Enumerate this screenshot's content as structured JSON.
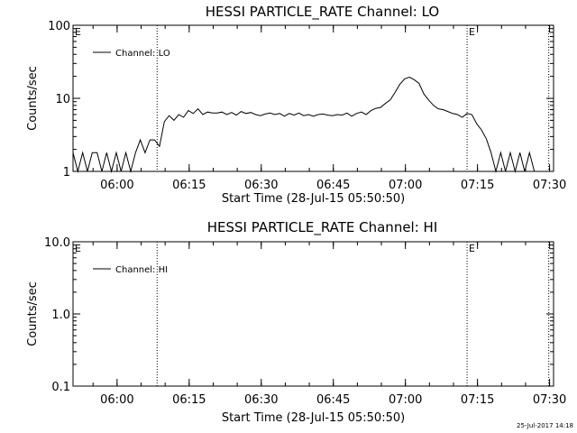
{
  "chart_data": [
    {
      "type": "line",
      "title": "HESSI PARTICLE_RATE Channel: LO",
      "xlabel": "Start Time (28-Jul-15 05:50:50)",
      "ylabel": "Counts/sec",
      "x_tick_labels": [
        "06:00",
        "06:15",
        "06:30",
        "06:45",
        "07:00",
        "07:15",
        "07:30"
      ],
      "x_ticks_min": [
        9.17,
        24.17,
        39.17,
        54.17,
        69.17,
        84.17,
        99.17
      ],
      "xlim_min": [
        0,
        100
      ],
      "y_scale": "log",
      "ylim": [
        1,
        100
      ],
      "y_tick_labels": [
        "1",
        "10",
        "100"
      ],
      "y_tick_values": [
        1,
        10,
        100
      ],
      "legend": "top-left",
      "series": [
        {
          "name": "Channel: LO",
          "x_min": [
            0,
            1,
            2,
            3,
            4,
            5,
            6,
            7,
            8,
            9,
            10,
            11,
            12,
            13,
            14,
            15,
            16,
            17,
            18,
            19,
            20,
            21,
            22,
            23,
            24,
            25,
            26,
            27,
            28,
            29,
            30,
            31,
            32,
            33,
            34,
            35,
            36,
            37,
            38,
            39,
            40,
            41,
            42,
            43,
            44,
            45,
            46,
            47,
            48,
            49,
            50,
            51,
            52,
            53,
            54,
            55,
            56,
            57,
            58,
            59,
            60,
            61,
            62,
            63,
            64,
            65,
            66,
            67,
            68,
            69,
            70,
            71,
            72,
            73,
            74,
            75,
            76,
            77,
            78,
            79,
            80,
            81,
            82,
            83,
            84,
            85,
            86,
            87,
            88,
            89,
            90,
            91,
            92,
            93,
            94,
            95,
            96
          ],
          "values": [
            1.8,
            1.0,
            1.8,
            1.0,
            1.8,
            1.8,
            1.0,
            1.8,
            1.0,
            1.8,
            1.0,
            1.8,
            1.0,
            1.8,
            2.7,
            1.8,
            2.7,
            2.7,
            2.2,
            4.8,
            5.8,
            5.0,
            6.0,
            5.5,
            6.8,
            6.2,
            7.2,
            6.0,
            6.5,
            6.3,
            6.3,
            6.5,
            6.0,
            6.4,
            5.9,
            6.6,
            6.2,
            6.4,
            6.0,
            5.8,
            6.1,
            6.3,
            6.0,
            6.2,
            5.7,
            6.2,
            5.9,
            6.3,
            5.8,
            6.0,
            5.7,
            6.0,
            6.1,
            5.9,
            5.8,
            6.0,
            5.9,
            6.3,
            5.7,
            6.2,
            6.5,
            6.0,
            6.8,
            7.3,
            7.5,
            8.5,
            9.5,
            12,
            15.5,
            18.5,
            19.5,
            18,
            16,
            11.5,
            9.5,
            8.0,
            7.2,
            7.0,
            6.6,
            6.2,
            6.0,
            5.5,
            6.2,
            6.0,
            4.5,
            3.7,
            2.8,
            1.8,
            1.0,
            1.8,
            1.0,
            1.8,
            1.0,
            1.8,
            1.0,
            1.8,
            1.0
          ]
        }
      ],
      "annotations": [
        {
          "text": "E",
          "x_min": 0
        },
        {
          "text": "E",
          "x_min": 82
        }
      ],
      "vlines_min": [
        17.5,
        82,
        99
      ]
    },
    {
      "type": "line",
      "title": "HESSI PARTICLE_RATE Channel: HI",
      "xlabel": "Start Time (28-Jul-15 05:50:50)",
      "ylabel": "Counts/sec",
      "x_tick_labels": [
        "06:00",
        "06:15",
        "06:30",
        "06:45",
        "07:00",
        "07:15",
        "07:30"
      ],
      "x_ticks_min": [
        9.17,
        24.17,
        39.17,
        54.17,
        69.17,
        84.17,
        99.17
      ],
      "xlim_min": [
        0,
        100
      ],
      "y_scale": "log",
      "ylim": [
        0.1,
        10
      ],
      "y_tick_labels": [
        "0.1",
        "1.0",
        "10.0"
      ],
      "y_tick_values": [
        0.1,
        1,
        10
      ],
      "legend": "top-left",
      "series": [
        {
          "name": "Channel: HI",
          "x_min": [],
          "values": []
        }
      ],
      "annotations": [
        {
          "text": "E",
          "x_min": 0
        },
        {
          "text": "E",
          "x_min": 82
        }
      ],
      "vlines_min": [
        17.5,
        82,
        99
      ]
    }
  ],
  "footer": {
    "timestamp": "25-Jul-2017 14:18"
  }
}
